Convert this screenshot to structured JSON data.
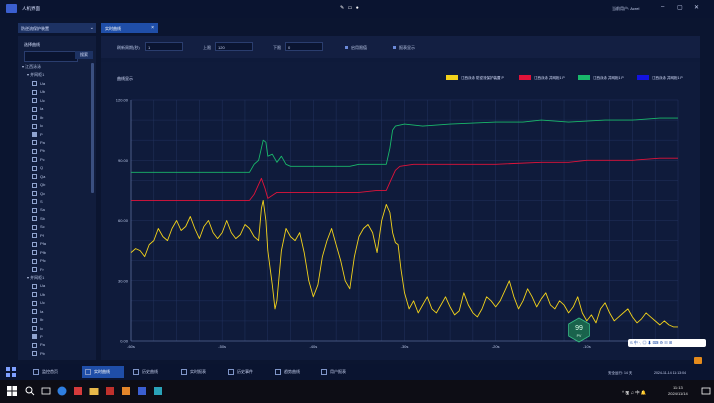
{
  "window": {
    "title": "人机界面",
    "center_icons": "✎ ▭ ●",
    "user_info": "当前用户: Acrel",
    "buttons": {
      "minimize": "–",
      "maximize": "▢",
      "close": "✕"
    }
  },
  "device_selector": {
    "value": "防逆流保护装置",
    "chevron": "⌄"
  },
  "tabs": [
    {
      "label": "实时曲线",
      "close": "×",
      "active": true
    }
  ],
  "sidebar": {
    "title": "选择曲线",
    "search_placeholder": "",
    "search_button": "搜索",
    "tree": [
      {
        "label": "江西泳泳",
        "level": 0,
        "type": "group",
        "expanded": true
      },
      {
        "label": "并网柜1",
        "level": 1,
        "type": "group",
        "expanded": true
      },
      {
        "label": "Ua",
        "level": 2,
        "type": "item",
        "checked": false
      },
      {
        "label": "Ub",
        "level": 2,
        "type": "item",
        "checked": false
      },
      {
        "label": "Uc",
        "level": 2,
        "type": "item",
        "checked": false
      },
      {
        "label": "Ia",
        "level": 2,
        "type": "item",
        "checked": false
      },
      {
        "label": "Ib",
        "level": 2,
        "type": "item",
        "checked": false
      },
      {
        "label": "Ic",
        "level": 2,
        "type": "item",
        "checked": false
      },
      {
        "label": "P",
        "level": 2,
        "type": "item",
        "checked": true
      },
      {
        "label": "Pa",
        "level": 2,
        "type": "item",
        "checked": false
      },
      {
        "label": "Pb",
        "level": 2,
        "type": "item",
        "checked": false
      },
      {
        "label": "Pc",
        "level": 2,
        "type": "item",
        "checked": false
      },
      {
        "label": "Q",
        "level": 2,
        "type": "item",
        "checked": false
      },
      {
        "label": "Qa",
        "level": 2,
        "type": "item",
        "checked": false
      },
      {
        "label": "Qb",
        "level": 2,
        "type": "item",
        "checked": false
      },
      {
        "label": "Qc",
        "level": 2,
        "type": "item",
        "checked": false
      },
      {
        "label": "S",
        "level": 2,
        "type": "item",
        "checked": false
      },
      {
        "label": "Sa",
        "level": 2,
        "type": "item",
        "checked": false
      },
      {
        "label": "Sb",
        "level": 2,
        "type": "item",
        "checked": false
      },
      {
        "label": "Sc",
        "level": 2,
        "type": "item",
        "checked": false
      },
      {
        "label": "Pf",
        "level": 2,
        "type": "item",
        "checked": false
      },
      {
        "label": "Pfa",
        "level": 2,
        "type": "item",
        "checked": false
      },
      {
        "label": "Pfb",
        "level": 2,
        "type": "item",
        "checked": false
      },
      {
        "label": "Pfc",
        "level": 2,
        "type": "item",
        "checked": false
      },
      {
        "label": "Fr",
        "level": 2,
        "type": "item",
        "checked": false
      },
      {
        "label": "并网柜1",
        "level": 1,
        "type": "group",
        "expanded": true
      },
      {
        "label": "Ua",
        "level": 2,
        "type": "item",
        "checked": false
      },
      {
        "label": "Ub",
        "level": 2,
        "type": "item",
        "checked": false
      },
      {
        "label": "Uc",
        "level": 2,
        "type": "item",
        "checked": false
      },
      {
        "label": "Ia",
        "level": 2,
        "type": "item",
        "checked": false
      },
      {
        "label": "Ib",
        "level": 2,
        "type": "item",
        "checked": false
      },
      {
        "label": "Ic",
        "level": 2,
        "type": "item",
        "checked": false
      },
      {
        "label": "P",
        "level": 2,
        "type": "item",
        "checked": true
      },
      {
        "label": "Pa",
        "level": 2,
        "type": "item",
        "checked": false
      },
      {
        "label": "Pb",
        "level": 2,
        "type": "item",
        "checked": false
      }
    ]
  },
  "toolbar": {
    "interval_label": "刷新周期(秒)",
    "interval_value": "1",
    "upper_label": "上限",
    "upper_value": "120",
    "lower_label": "下限",
    "lower_value": "0",
    "enable_limit_label": "启用限值",
    "table_display_label": "报表显示"
  },
  "chart_panel": {
    "title": "曲线显示"
  },
  "chart_data": {
    "type": "line",
    "ylim": [
      0,
      120
    ],
    "yticks": [
      "120.00",
      "90.00",
      "60.00",
      "30.00",
      "0.00"
    ],
    "xlim": [
      -60,
      0
    ],
    "xticks": [
      "-60s",
      "-50s",
      "-40s",
      "-30s",
      "-20s",
      "-10s"
    ],
    "grid": true,
    "legend_position": "top-right",
    "series": [
      {
        "name": "江西泳泳 防逆流保护装置 P",
        "color": "#f2d21b",
        "values": [
          [
            -60,
            44
          ],
          [
            -59.5,
            46
          ],
          [
            -59,
            45
          ],
          [
            -58.5,
            42
          ],
          [
            -58,
            48
          ],
          [
            -57.5,
            50
          ],
          [
            -57,
            56
          ],
          [
            -56.5,
            52
          ],
          [
            -56,
            50
          ],
          [
            -55.5,
            56
          ],
          [
            -55,
            60
          ],
          [
            -54.5,
            55
          ],
          [
            -54,
            57
          ],
          [
            -53.5,
            62
          ],
          [
            -53,
            56
          ],
          [
            -52.5,
            51
          ],
          [
            -52,
            57
          ],
          [
            -51.5,
            60
          ],
          [
            -51,
            54
          ],
          [
            -50.5,
            51
          ],
          [
            -50,
            54
          ],
          [
            -49.5,
            60
          ],
          [
            -49,
            54
          ],
          [
            -48.5,
            51
          ],
          [
            -48,
            53
          ],
          [
            -47.5,
            58
          ],
          [
            -47,
            56
          ],
          [
            -46.5,
            52
          ],
          [
            -46,
            50
          ],
          [
            -45.7,
            66
          ],
          [
            -45.5,
            70
          ],
          [
            -45.2,
            60
          ],
          [
            -45,
            45
          ],
          [
            -44.5,
            28
          ],
          [
            -44.2,
            16
          ],
          [
            -44,
            20
          ],
          [
            -43.5,
            45
          ],
          [
            -43,
            56
          ],
          [
            -42.5,
            52
          ],
          [
            -42,
            50
          ],
          [
            -41.5,
            54
          ],
          [
            -41,
            44
          ],
          [
            -40.5,
            30
          ],
          [
            -40,
            22
          ],
          [
            -39.5,
            28
          ],
          [
            -39,
            42
          ],
          [
            -38.5,
            50
          ],
          [
            -38,
            56
          ],
          [
            -37.5,
            48
          ],
          [
            -37,
            40
          ],
          [
            -36.5,
            30
          ],
          [
            -36,
            26
          ],
          [
            -35.5,
            42
          ],
          [
            -35,
            52
          ],
          [
            -34.5,
            56
          ],
          [
            -34,
            58
          ],
          [
            -33.5,
            54
          ],
          [
            -33,
            44
          ],
          [
            -32.5,
            60
          ],
          [
            -32,
            68
          ],
          [
            -31.6,
            64
          ],
          [
            -31.3,
            54
          ],
          [
            -31,
            49
          ],
          [
            -30.7,
            48
          ],
          [
            -30.4,
            36
          ],
          [
            -30,
            24
          ],
          [
            -29.5,
            16
          ],
          [
            -29,
            20
          ],
          [
            -28.5,
            14
          ],
          [
            -28,
            18
          ],
          [
            -27.5,
            22
          ],
          [
            -27,
            16
          ],
          [
            -26.5,
            14
          ],
          [
            -26,
            18
          ],
          [
            -25.5,
            22
          ],
          [
            -25,
            17
          ],
          [
            -24.5,
            13
          ],
          [
            -24,
            15
          ],
          [
            -23.5,
            24
          ],
          [
            -23,
            18
          ],
          [
            -22.5,
            14
          ],
          [
            -22,
            12
          ],
          [
            -21.5,
            16
          ],
          [
            -21,
            22
          ],
          [
            -20.5,
            20
          ],
          [
            -20,
            17
          ],
          [
            -19.5,
            20
          ],
          [
            -19,
            25
          ],
          [
            -18.5,
            30
          ],
          [
            -18,
            22
          ],
          [
            -17.5,
            16
          ],
          [
            -17,
            20
          ],
          [
            -16.5,
            26
          ],
          [
            -16,
            22
          ],
          [
            -15.5,
            17
          ],
          [
            -15,
            21
          ],
          [
            -14.5,
            24
          ],
          [
            -14,
            18
          ],
          [
            -13.5,
            16
          ],
          [
            -13,
            20
          ],
          [
            -12.5,
            18
          ],
          [
            -12,
            14
          ],
          [
            -11.5,
            17
          ],
          [
            -11,
            22
          ],
          [
            -10.5,
            14
          ],
          [
            -10,
            10
          ],
          [
            -9.5,
            13
          ],
          [
            -9,
            9
          ],
          [
            -8.5,
            16
          ],
          [
            -8,
            19
          ],
          [
            -7.5,
            14
          ],
          [
            -7,
            10
          ],
          [
            -6.5,
            12
          ],
          [
            -6,
            14
          ],
          [
            -5.5,
            16
          ],
          [
            -5,
            12
          ],
          [
            -4.5,
            9
          ],
          [
            -4,
            11
          ],
          [
            -3.5,
            14
          ],
          [
            -3,
            12
          ],
          [
            -2.5,
            10
          ],
          [
            -2,
            8
          ],
          [
            -1.5,
            10
          ],
          [
            -1,
            8
          ],
          [
            -0.5,
            7
          ],
          [
            0,
            7
          ]
        ]
      },
      {
        "name": "江西泳泳 并网柜1 P",
        "color": "#e0133a",
        "values": [
          [
            -60,
            70
          ],
          [
            -47,
            70
          ],
          [
            -46.5,
            73
          ],
          [
            -45.7,
            81
          ],
          [
            -45.3,
            76
          ],
          [
            -45,
            71
          ],
          [
            -44,
            74
          ],
          [
            -43,
            74
          ],
          [
            -36,
            74
          ],
          [
            -35,
            74
          ],
          [
            -33,
            75
          ],
          [
            -32,
            75
          ],
          [
            -31.5,
            80
          ],
          [
            -31,
            85
          ],
          [
            -30.5,
            87
          ],
          [
            -29,
            88
          ],
          [
            -25,
            88
          ],
          [
            -20,
            88
          ],
          [
            -15,
            89
          ],
          [
            -12,
            89
          ],
          [
            -10,
            90
          ],
          [
            -5,
            90
          ],
          [
            -2,
            91
          ],
          [
            0,
            91
          ]
        ]
      },
      {
        "name": "江西泳泳 并网柜1 P",
        "color": "#19b86b",
        "values": [
          [
            -60,
            84
          ],
          [
            -47,
            84
          ],
          [
            -46.5,
            88
          ],
          [
            -46,
            90
          ],
          [
            -45.5,
            100
          ],
          [
            -45.2,
            99
          ],
          [
            -45,
            92
          ],
          [
            -44.5,
            93
          ],
          [
            -44,
            89
          ],
          [
            -43.5,
            92
          ],
          [
            -43,
            88
          ],
          [
            -42.5,
            87
          ],
          [
            -42,
            87
          ],
          [
            -36,
            87
          ],
          [
            -35,
            88
          ],
          [
            -32,
            88
          ],
          [
            -31.6,
            96
          ],
          [
            -31.3,
            105
          ],
          [
            -31,
            107
          ],
          [
            -30,
            108
          ],
          [
            -28,
            107
          ],
          [
            -25,
            108
          ],
          [
            -20,
            109
          ],
          [
            -17,
            109
          ],
          [
            -15,
            110
          ],
          [
            -12,
            109
          ],
          [
            -8,
            110
          ],
          [
            -5,
            110
          ],
          [
            -2,
            111
          ],
          [
            0,
            111
          ]
        ]
      },
      {
        "name": "江西泳泳 并网柜1 P",
        "color": "#1313e0",
        "values": []
      }
    ],
    "gauge_value": "99",
    "gauge_sub": "PV"
  },
  "float_toolbar": {
    "text": "S 中 ·, ◎ ⬇ ⌨ ⚙ ☷ ⊞"
  },
  "bottom_nav": {
    "items": [
      {
        "label": "监控首页",
        "active": false
      },
      {
        "label": "实时曲线",
        "active": true
      },
      {
        "label": "历史曲线",
        "active": false
      },
      {
        "label": "实时报表",
        "active": false
      },
      {
        "label": "历史事件",
        "active": false
      },
      {
        "label": "趋势曲线",
        "active": false
      },
      {
        "label": "用户报表",
        "active": false
      }
    ],
    "security": "安全运行: 14 天",
    "datetime": "2024-11-14 11:13:04"
  },
  "taskbar": {
    "tray_text": "^ 🖫 ♫ 中 🔔",
    "clock_time": "11:13",
    "clock_date": "2024/11/14"
  }
}
